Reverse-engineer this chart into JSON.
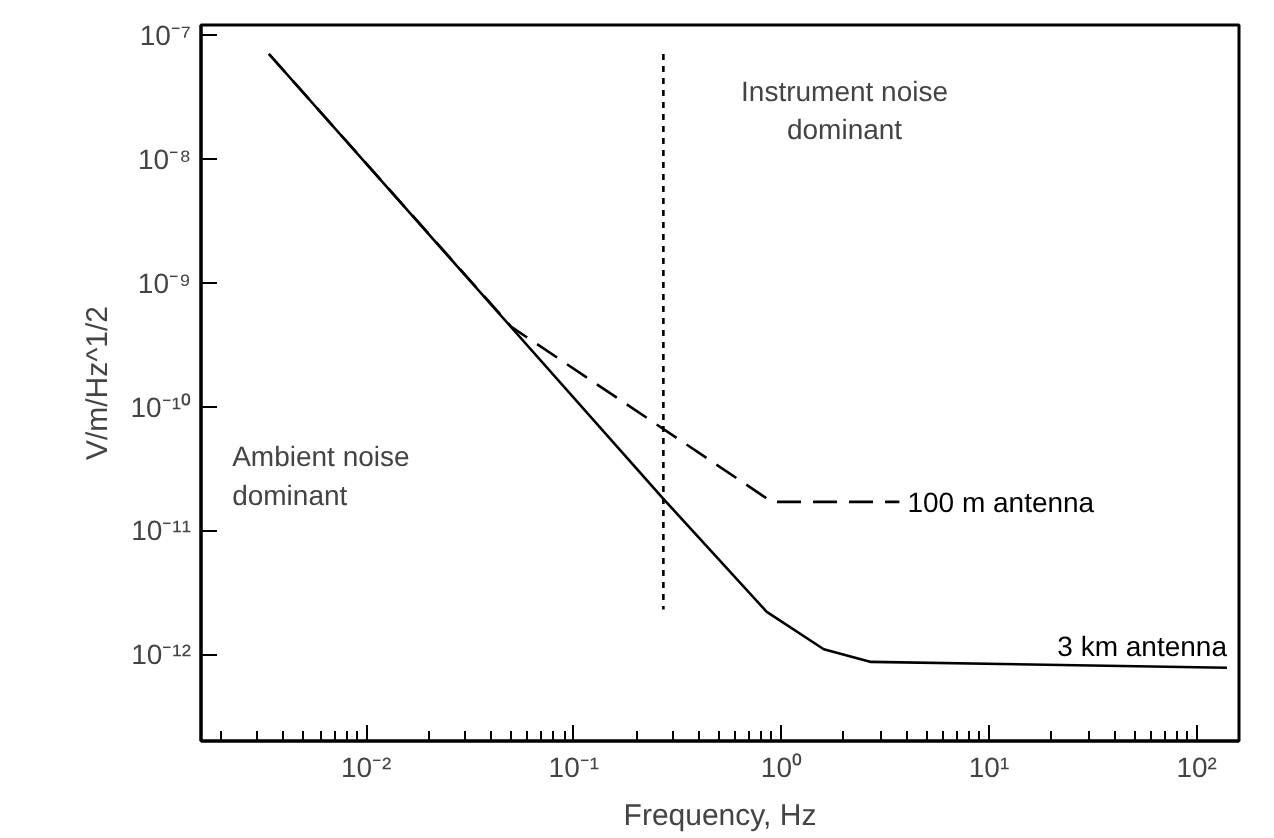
{
  "chart_data": {
    "type": "line",
    "xlabel": "Frequency, Hz",
    "ylabel": "V/m/Hz^1/2",
    "log": "xy",
    "grid": false,
    "marker": "none",
    "xlim": [
      0.0016,
      160
    ],
    "ylim": [
      2e-13,
      1.2e-07
    ],
    "xticks": [
      {
        "value": 0.01,
        "label": "10⁻²"
      },
      {
        "value": 0.1,
        "label": "10⁻¹"
      },
      {
        "value": 1,
        "label": "10⁰"
      },
      {
        "value": 10,
        "label": "10¹"
      },
      {
        "value": 100,
        "label": "10²"
      }
    ],
    "yticks": [
      {
        "value": 1e-12,
        "label": "10⁻¹²"
      },
      {
        "value": 1e-11,
        "label": "10⁻¹¹"
      },
      {
        "value": 1e-10,
        "label": "10⁻¹⁰"
      },
      {
        "value": 1e-09,
        "label": "10⁻⁹"
      },
      {
        "value": 1e-08,
        "label": "10⁻⁸"
      },
      {
        "value": 1e-07,
        "label": "10⁻⁷"
      }
    ],
    "series": [
      {
        "name": "100 m antenna",
        "color": "#000000",
        "line_style": "dashed",
        "x": [
          0.0034,
          0.05,
          0.9,
          3.7
        ],
        "values": [
          7e-08,
          4.4e-10,
          1.7e-11,
          1.7e-11
        ]
      },
      {
        "name": "3 km antenna",
        "color": "#000000",
        "line_style": "solid",
        "x": [
          0.0034,
          0.27,
          0.85,
          1.6,
          2.7,
          140
        ],
        "values": [
          7e-08,
          1.8e-11,
          2.2e-12,
          1.1e-12,
          8.7e-13,
          7.8e-13
        ]
      },
      {
        "color": "#000000",
        "line_style": "dotted",
        "x": [
          0.27,
          0.27
        ],
        "values": [
          7e-08,
          2.3e-12
        ]
      }
    ],
    "annotations": [
      "Instrument noise\ndominant",
      "Ambient noise\ndominant"
    ]
  }
}
